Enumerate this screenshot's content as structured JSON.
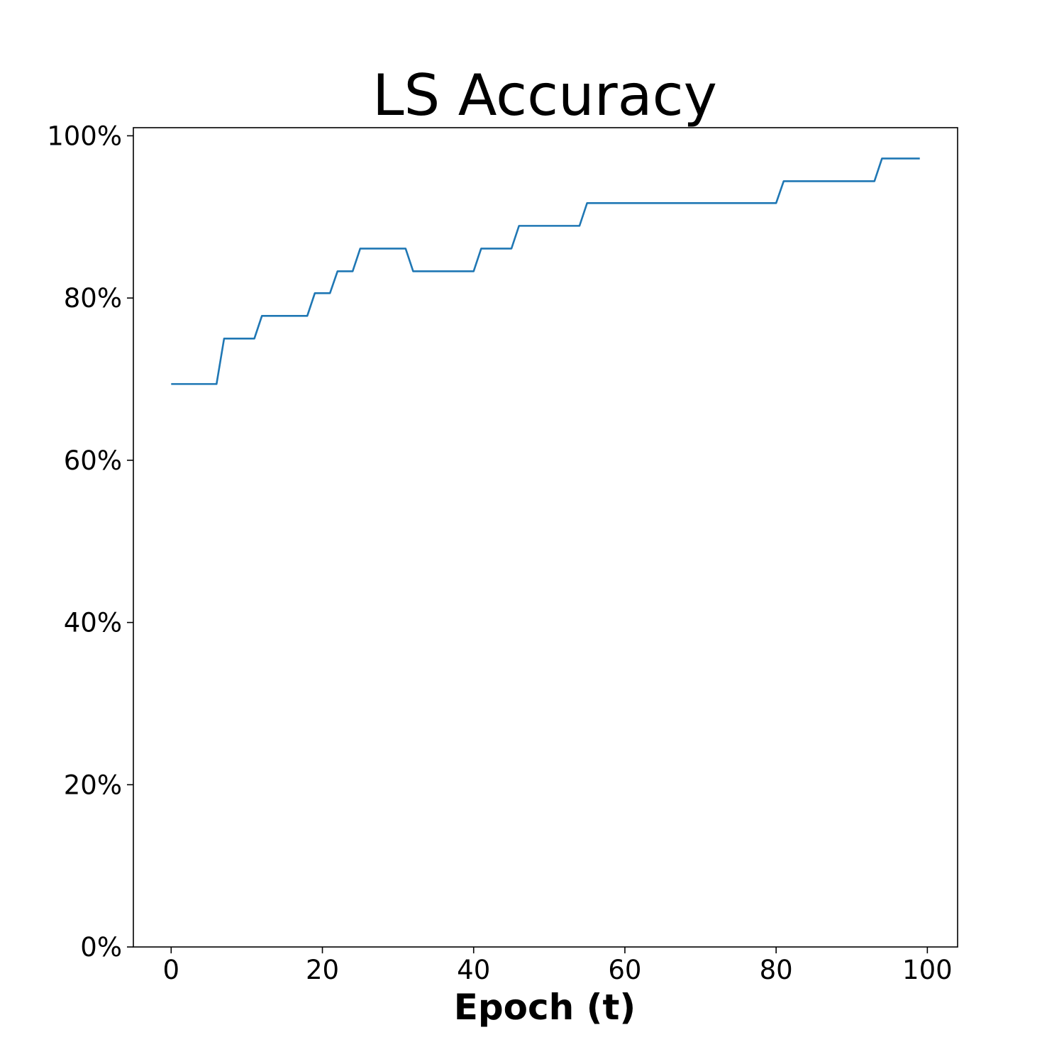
{
  "chart_data": {
    "type": "line",
    "title": "LS Accuracy",
    "xlabel": "Epoch (t)",
    "ylabel": "",
    "xlim": [
      -5,
      104
    ],
    "ylim": [
      0,
      1.01
    ],
    "x_ticks": [
      0,
      20,
      40,
      60,
      80,
      100
    ],
    "x_tick_labels": [
      "0",
      "20",
      "40",
      "60",
      "80",
      "100"
    ],
    "y_ticks": [
      0,
      0.2,
      0.4,
      0.6,
      0.8,
      1.0
    ],
    "y_tick_labels": [
      "0%",
      "20%",
      "40%",
      "60%",
      "80%",
      "100%"
    ],
    "grid": false,
    "legend": "none",
    "series": [
      {
        "color": "#1f77b4",
        "x": [
          0,
          1,
          2,
          3,
          4,
          5,
          6,
          7,
          8,
          9,
          10,
          11,
          12,
          13,
          14,
          15,
          16,
          17,
          18,
          19,
          20,
          21,
          22,
          23,
          24,
          25,
          26,
          27,
          28,
          29,
          30,
          31,
          32,
          33,
          34,
          35,
          36,
          37,
          38,
          39,
          40,
          41,
          42,
          43,
          44,
          45,
          46,
          47,
          48,
          49,
          50,
          51,
          52,
          53,
          54,
          55,
          56,
          57,
          58,
          59,
          60,
          61,
          62,
          63,
          64,
          65,
          66,
          67,
          68,
          69,
          70,
          71,
          72,
          73,
          74,
          75,
          76,
          77,
          78,
          79,
          80,
          81,
          82,
          83,
          84,
          85,
          86,
          87,
          88,
          89,
          90,
          91,
          92,
          93,
          94,
          95,
          96,
          97,
          98,
          99
        ],
        "y": [
          0.694,
          0.694,
          0.694,
          0.694,
          0.694,
          0.694,
          0.694,
          0.75,
          0.75,
          0.75,
          0.75,
          0.75,
          0.778,
          0.778,
          0.778,
          0.778,
          0.778,
          0.778,
          0.778,
          0.806,
          0.806,
          0.806,
          0.833,
          0.833,
          0.833,
          0.861,
          0.861,
          0.861,
          0.861,
          0.861,
          0.861,
          0.861,
          0.833,
          0.833,
          0.833,
          0.833,
          0.833,
          0.833,
          0.833,
          0.833,
          0.833,
          0.861,
          0.861,
          0.861,
          0.861,
          0.861,
          0.889,
          0.889,
          0.889,
          0.889,
          0.889,
          0.889,
          0.889,
          0.889,
          0.889,
          0.917,
          0.917,
          0.917,
          0.917,
          0.917,
          0.917,
          0.917,
          0.917,
          0.917,
          0.917,
          0.917,
          0.917,
          0.917,
          0.917,
          0.917,
          0.917,
          0.917,
          0.917,
          0.917,
          0.917,
          0.917,
          0.917,
          0.917,
          0.917,
          0.917,
          0.917,
          0.944,
          0.944,
          0.944,
          0.944,
          0.944,
          0.944,
          0.944,
          0.944,
          0.944,
          0.944,
          0.944,
          0.944,
          0.944,
          0.972,
          0.972,
          0.972,
          0.972,
          0.972,
          0.972
        ]
      }
    ]
  }
}
